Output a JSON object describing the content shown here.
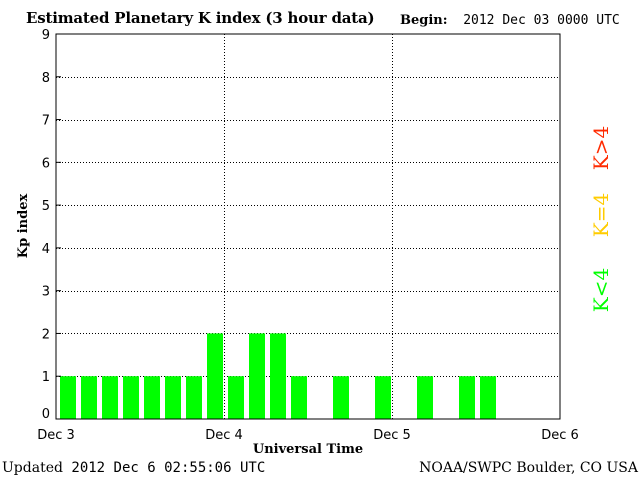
{
  "header": {
    "title": "Estimated Planetary K index (3 hour data)",
    "begin_label": "Begin:",
    "begin_value": "2012 Dec 03 0000 UTC"
  },
  "footer": {
    "updated_label": "Updated",
    "updated_value": "2012 Dec  6 02:55:06 UTC",
    "credit": "NOAA/SWPC Boulder, CO USA"
  },
  "legend": {
    "items": [
      {
        "label": "K<4",
        "color": "#00ff00"
      },
      {
        "label": "K=4",
        "color": "#ffcc00"
      },
      {
        "label": "K>4",
        "color": "#ff2a00"
      }
    ]
  },
  "chart_data": {
    "type": "bar",
    "xlabel": "Universal Time",
    "ylabel": "Kp index",
    "ylim": [
      0,
      9
    ],
    "yticks": [
      0,
      1,
      2,
      3,
      4,
      5,
      6,
      7,
      8,
      9
    ],
    "xticks": [
      "Dec 3",
      "Dec 4",
      "Dec 5",
      "Dec 6"
    ],
    "grid": true,
    "bar_color": "#00ff00",
    "values": [
      1,
      1,
      1,
      1,
      1,
      1,
      1,
      2,
      1,
      2,
      2,
      1,
      null,
      1,
      null,
      1,
      null,
      1,
      null,
      1,
      1,
      null,
      null,
      null
    ]
  }
}
